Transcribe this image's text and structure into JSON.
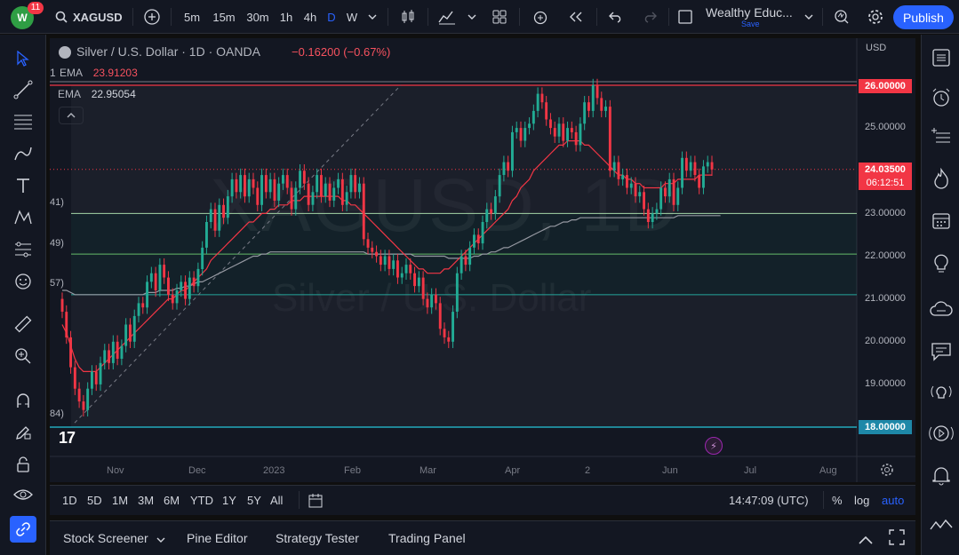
{
  "topbar": {
    "notifications": "11",
    "symbol": "XAGUSD",
    "intervals": [
      "5m",
      "15m",
      "30m",
      "1h",
      "4h",
      "D",
      "W"
    ],
    "active_interval": "D",
    "layout_name": "Wealthy Educ...",
    "layout_save": "Save",
    "publish": "Publish"
  },
  "legend": {
    "title": "Silver / U.S. Dollar · 1D · OANDA",
    "change": "−0.16200 (−0.67%)",
    "ema1": {
      "prefix": "1",
      "name": "EMA",
      "value": "23.91203"
    },
    "ema2": {
      "name": "EMA",
      "value": "22.95054"
    }
  },
  "levels": {
    "l1": "41)",
    "l2": "49)",
    "l3": "57)",
    "l4": "84)"
  },
  "watermark": {
    "symbol": "XAGUSD, 1D",
    "name": "Silver / U.S. Dollar"
  },
  "price_axis": {
    "currency": "USD",
    "ticks": [
      "25.00000",
      "23.00000",
      "22.00000",
      "21.00000",
      "20.00000",
      "19.00000"
    ],
    "tag_top": "26.00000",
    "tag_last": "24.03500",
    "tag_countdown": "06:12:51",
    "tag_bottom": "18.00000",
    "colors": {
      "tag_top": "#f23645",
      "tag_last": "#f23645",
      "tag_bottom": "#22ab94"
    }
  },
  "time_axis": [
    "Nov",
    "Dec",
    "2023",
    "Feb",
    "Mar",
    "Apr",
    "2",
    "Jun",
    "Jul",
    "Aug"
  ],
  "rangebar": {
    "ranges": [
      "1D",
      "5D",
      "1M",
      "3M",
      "6M",
      "YTD",
      "1Y",
      "5Y",
      "All"
    ],
    "clock": "14:47:09 (UTC)",
    "percent": "%",
    "log": "log",
    "auto": "auto"
  },
  "bottom_panel": {
    "tabs": [
      "Stock Screener",
      "Pine Editor",
      "Strategy Tester",
      "Trading Panel"
    ]
  },
  "chart_data": {
    "type": "candlestick",
    "title": "Silver / U.S. Dollar · 1D · OANDA",
    "ylim": [
      17.5,
      26.8
    ],
    "horizontal_levels": [
      26.0,
      23.0,
      22.05,
      21.1,
      18.0
    ],
    "colors": {
      "up": "#22ab94",
      "down": "#f23645",
      "ema_fast": "#f23645",
      "ema_slow": "#9598a1"
    },
    "closes": [
      20.7,
      20.1,
      19.4,
      18.9,
      18.6,
      18.4,
      18.9,
      19.3,
      19.0,
      19.5,
      19.8,
      19.5,
      20.0,
      19.6,
      19.9,
      20.4,
      20.0,
      20.6,
      20.9,
      20.8,
      21.4,
      21.6,
      21.2,
      21.8,
      21.5,
      21.1,
      20.9,
      21.2,
      21.4,
      21.0,
      21.5,
      21.3,
      21.7,
      22.2,
      22.8,
      23.1,
      22.6,
      23.2,
      22.9,
      23.4,
      23.8,
      23.5,
      23.9,
      23.4,
      23.8,
      23.6,
      23.2,
      23.9,
      23.5,
      23.8,
      23.3,
      23.7,
      23.9,
      23.6,
      23.1,
      23.6,
      24.0,
      23.7,
      23.2,
      23.5,
      23.9,
      23.4,
      23.7,
      23.3,
      23.6,
      23.8,
      23.2,
      23.5,
      23.9,
      23.5,
      23.7,
      22.4,
      22.2,
      22.1,
      22.0,
      21.8,
      22.0,
      21.7,
      21.9,
      21.5,
      21.6,
      21.8,
      21.6,
      21.3,
      21.5,
      21.0,
      20.8,
      21.1,
      20.9,
      20.3,
      20.1,
      20.0,
      20.7,
      21.6,
      22.0,
      21.8,
      22.2,
      22.5,
      22.3,
      22.8,
      23.1,
      23.0,
      23.4,
      23.9,
      24.2,
      24.0,
      24.9,
      25.0,
      24.7,
      25.0,
      25.1,
      25.4,
      25.8,
      25.6,
      25.2,
      25.0,
      24.8,
      25.1,
      24.7,
      25.0,
      24.9,
      24.6,
      25.1,
      25.6,
      25.4,
      26.0,
      25.7,
      25.4,
      25.5,
      24.0,
      24.2,
      23.8,
      23.9,
      23.6,
      23.7,
      23.4,
      23.5,
      23.1,
      22.8,
      23.0,
      23.1,
      23.6,
      23.4,
      23.8,
      23.2,
      23.6,
      24.3,
      24.0,
      24.2,
      23.9,
      23.6,
      24.1,
      24.2,
      24.03
    ],
    "ema_fast": [
      20.4,
      20.2,
      19.9,
      19.6,
      19.4,
      19.3,
      19.3,
      19.3,
      19.3,
      19.4,
      19.5,
      19.6,
      19.7,
      19.8,
      19.9,
      20.0,
      20.1,
      20.2,
      20.3,
      20.4,
      20.5,
      20.6,
      20.7,
      20.8,
      20.9,
      21.0,
      21.0,
      21.1,
      21.2,
      21.2,
      21.3,
      21.4,
      21.5,
      21.6,
      21.7,
      21.9,
      22.0,
      22.1,
      22.2,
      22.3,
      22.4,
      22.5,
      22.6,
      22.7,
      22.8,
      22.8,
      22.9,
      23.0,
      23.0,
      23.1,
      23.1,
      23.2,
      23.2,
      23.2,
      23.3,
      23.3,
      23.3,
      23.4,
      23.4,
      23.4,
      23.4,
      23.4,
      23.4,
      23.4,
      23.4,
      23.4,
      23.3,
      23.3,
      23.2,
      23.2,
      23.1,
      23.0,
      22.9,
      22.8,
      22.7,
      22.6,
      22.5,
      22.4,
      22.3,
      22.2,
      22.1,
      22.0,
      21.9,
      21.8,
      21.7,
      21.7,
      21.6,
      21.6,
      21.6,
      21.6,
      21.7,
      21.7,
      21.8,
      21.9,
      22.0,
      22.1,
      22.2,
      22.3,
      22.4,
      22.5,
      22.6,
      22.7,
      22.8,
      22.9,
      23.0,
      23.1,
      23.3,
      23.4,
      23.6,
      23.7,
      23.8,
      24.0,
      24.1,
      24.2,
      24.3,
      24.4,
      24.5,
      24.6,
      24.6,
      24.7,
      24.7,
      24.7,
      24.7,
      24.6,
      24.6,
      24.5,
      24.4,
      24.3,
      24.2,
      24.1,
      24.0,
      23.9,
      23.9,
      23.8,
      23.8,
      23.7,
      23.7,
      23.6,
      23.6,
      23.6,
      23.6,
      23.6,
      23.7,
      23.7,
      23.7,
      23.8,
      23.8,
      23.8,
      23.8,
      23.8,
      23.9,
      23.9,
      23.9,
      23.9
    ],
    "ema_slow": [
      21.2,
      21.2,
      21.15,
      21.1,
      21.1,
      21.1,
      21.1,
      21.1,
      21.1,
      21.1,
      21.1,
      21.1,
      21.1,
      21.1,
      21.1,
      21.1,
      21.1,
      21.1,
      21.1,
      21.1,
      21.15,
      21.15,
      21.15,
      21.2,
      21.2,
      21.2,
      21.2,
      21.25,
      21.25,
      21.3,
      21.3,
      21.35,
      21.4,
      21.4,
      21.45,
      21.5,
      21.55,
      21.6,
      21.65,
      21.7,
      21.75,
      21.8,
      21.85,
      21.9,
      21.95,
      22.0,
      22.0,
      22.05,
      22.05,
      22.1,
      22.1,
      22.1,
      22.1,
      22.1,
      22.1,
      22.1,
      22.1,
      22.1,
      22.1,
      22.1,
      22.1,
      22.1,
      22.1,
      22.1,
      22.1,
      22.1,
      22.1,
      22.1,
      22.1,
      22.1,
      22.1,
      22.1,
      22.05,
      22.05,
      22.05,
      22.05,
      22.05,
      22.05,
      22.05,
      22.05,
      22.05,
      22.05,
      22.05,
      22.0,
      22.0,
      22.0,
      22.0,
      22.0,
      22.0,
      22.0,
      22.0,
      21.95,
      21.95,
      21.95,
      21.95,
      21.95,
      21.95,
      22.0,
      22.0,
      22.05,
      22.05,
      22.1,
      22.1,
      22.15,
      22.2,
      22.2,
      22.25,
      22.3,
      22.35,
      22.4,
      22.45,
      22.5,
      22.55,
      22.6,
      22.65,
      22.7,
      22.7,
      22.75,
      22.8,
      22.8,
      22.85,
      22.85,
      22.9,
      22.9,
      22.9,
      22.9,
      22.9,
      22.9,
      22.9,
      22.9,
      22.9,
      22.9,
      22.9,
      22.9,
      22.9,
      22.9,
      22.9,
      22.9,
      22.9,
      22.9,
      22.9,
      22.9,
      22.9,
      22.9,
      22.9,
      22.95,
      22.95,
      22.95,
      22.95,
      22.95,
      22.95,
      22.95,
      22.95,
      22.95,
      22.95,
      22.95
    ]
  }
}
